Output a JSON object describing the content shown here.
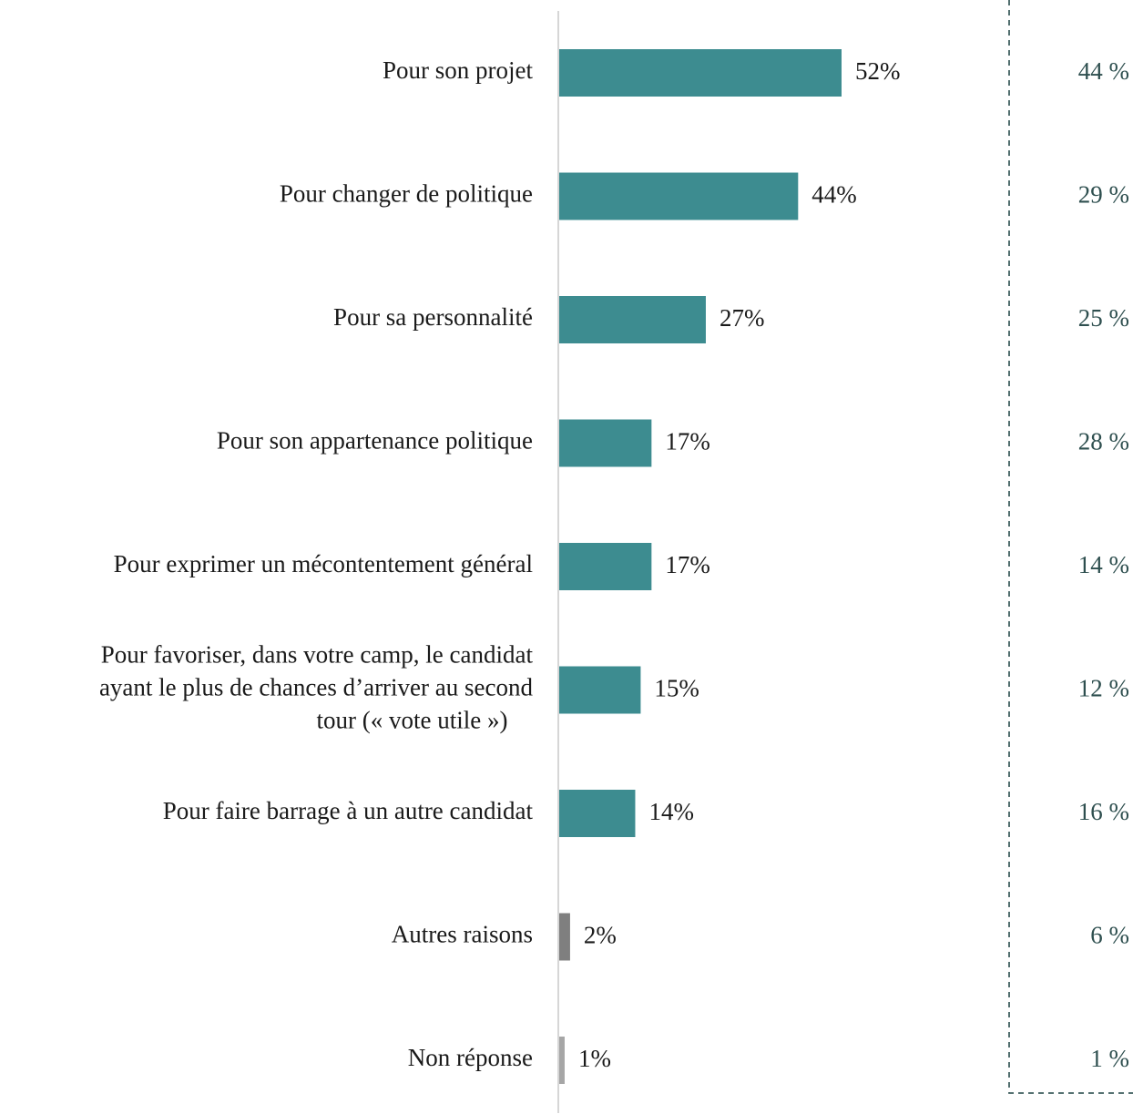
{
  "chart_data": {
    "type": "bar",
    "orientation": "horizontal",
    "categories": [
      [
        "Pour son projet"
      ],
      [
        "Pour changer de politique"
      ],
      [
        "Pour sa personnalité"
      ],
      [
        "Pour son appartenance politique"
      ],
      [
        "Pour exprimer un mécontentement général"
      ],
      [
        "Pour favoriser, dans votre camp, le candidat",
        "ayant le plus de chances d’arriver au second",
        "tour (« vote utile »)"
      ],
      [
        "Pour faire barrage à un autre candidat"
      ],
      [
        "Autres raisons"
      ],
      [
        "Non réponse"
      ]
    ],
    "series": [
      {
        "values": [
          52,
          44,
          27,
          17,
          17,
          15,
          14,
          2,
          1
        ],
        "labels": [
          "52%",
          "44%",
          "27%",
          "17%",
          "17%",
          "15%",
          "14%",
          "2%",
          "1%"
        ],
        "colors": [
          "#3d8c90",
          "#3d8c90",
          "#3d8c90",
          "#3d8c90",
          "#3d8c90",
          "#3d8c90",
          "#3d8c90",
          "#7f7f7f",
          "#a6a6a6"
        ]
      }
    ],
    "comparison_column": {
      "values": [
        44,
        29,
        25,
        28,
        14,
        12,
        16,
        6,
        1
      ],
      "labels": [
        "44 %",
        "29 %",
        "25 %",
        "28 %",
        "14 %",
        "12 %",
        "16 %",
        "6 %",
        "1 %"
      ],
      "color": "#2e4f4f"
    },
    "xlim": [
      0,
      52
    ],
    "grid": false,
    "legend": "none"
  }
}
